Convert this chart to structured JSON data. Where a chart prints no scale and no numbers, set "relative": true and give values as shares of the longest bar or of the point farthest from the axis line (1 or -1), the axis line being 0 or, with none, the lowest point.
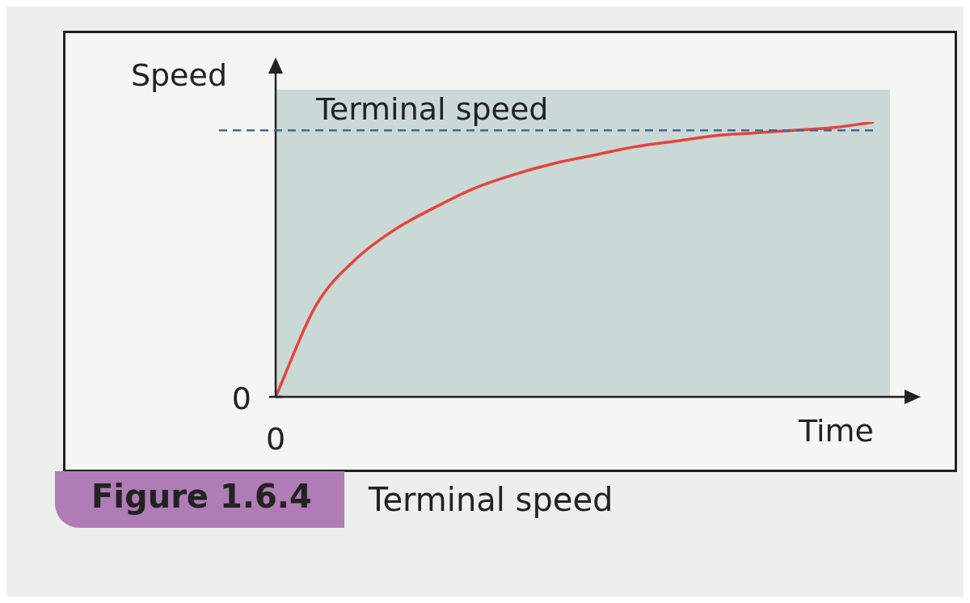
{
  "chart_data": {
    "type": "line",
    "relative": true,
    "xlabel": "Time",
    "ylabel": "Speed",
    "categories": [
      null,
      null,
      null,
      null,
      null,
      null,
      null,
      null,
      null,
      null,
      null,
      null,
      null,
      null,
      null,
      null
    ],
    "series": [
      {
        "color": "#e8423a",
        "values": [
          0,
          0.33,
          0.5,
          0.61,
          0.69,
          0.76,
          0.81,
          0.85,
          0.88,
          0.91,
          0.93,
          0.95,
          0.96,
          0.97,
          0.98,
          1.0
        ]
      }
    ],
    "ref_lines": [
      {
        "axis": "y",
        "value": 0.97,
        "label": "Terminal speed",
        "color": "#3a6a9a",
        "line_style": "dashed"
      }
    ],
    "annotations": [
      "0",
      "0",
      "Figure 1.6.4",
      "Terminal speed"
    ],
    "legend": false,
    "marker": "none",
    "line_style": "solid"
  }
}
